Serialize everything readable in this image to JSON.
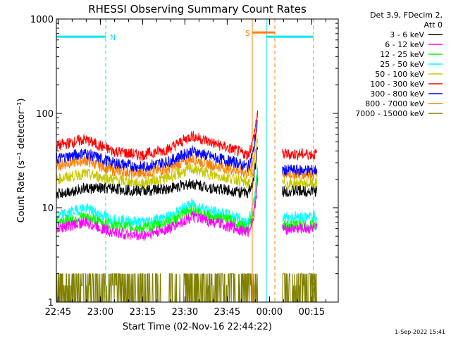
{
  "chart_data": {
    "type": "line",
    "title": "RHESSI Observing Summary Count Rates",
    "ylabel": "Count Rate (s⁻¹ detector⁻¹)",
    "xlabel": "Start Time (02-Nov-16 22:44:22)",
    "yscale": "log",
    "ylim": [
      1,
      1000
    ],
    "x_range_minutes_from_start": [
      0,
      100
    ],
    "x_ticks": [
      {
        "label": "22:45",
        "t": 0.6
      },
      {
        "label": "23:00",
        "t": 15.6
      },
      {
        "label": "23:15",
        "t": 30.6
      },
      {
        "label": "23:30",
        "t": 45.6
      },
      {
        "label": "23:45",
        "t": 60.6
      },
      {
        "label": "00:00",
        "t": 75.6
      },
      {
        "label": "00:15",
        "t": 90.6
      }
    ],
    "y_ticks": [
      {
        "label": "1",
        "v": 1
      },
      {
        "label": "10",
        "v": 10
      },
      {
        "label": "100",
        "v": 100
      },
      {
        "label": "1000",
        "v": 1000
      }
    ],
    "legend_header": [
      "Det 3,9, FDecim 2,",
      "Att 0"
    ],
    "legend_placement": "right",
    "footer_date": "1-Sep-2022 15:41",
    "flags": [
      {
        "label": "N",
        "color": "#00e5ee",
        "t_start": 0,
        "t_end": 17.5,
        "level": 650
      },
      {
        "label": "",
        "color": "#00e5ee",
        "t_start": 74.5,
        "t_end": 91.2,
        "level": 650
      },
      {
        "label": "S",
        "color": "#ff7f00",
        "t_start": 69.5,
        "t_end": 77.5,
        "level": 720
      }
    ],
    "markers": [
      {
        "kind": "solid",
        "color": "#00e5ee",
        "t": 0
      },
      {
        "kind": "dashed",
        "color": "#00e5ee",
        "t": 17.5
      },
      {
        "kind": "solid",
        "color": "#00e5ee",
        "t": 74.5
      },
      {
        "kind": "dashed",
        "color": "#00e5ee",
        "t": 91.2
      },
      {
        "kind": "solid",
        "color": "#ff7f00",
        "t": 69.5
      },
      {
        "kind": "dashed",
        "color": "#ff7f00",
        "t": 77.5
      }
    ],
    "data_gap_minutes": [
      71.5,
      80.2
    ],
    "series": [
      {
        "name": "3 - 6 keV",
        "color": "#000000",
        "t": [
          0,
          10,
          20,
          30,
          40,
          48,
          56,
          64,
          68,
          70,
          71.5,
          80.2,
          90,
          92.5
        ],
        "values": [
          14,
          16,
          16,
          15,
          16,
          18,
          16,
          15,
          14,
          20,
          45,
          15,
          15,
          15
        ]
      },
      {
        "name": "6 - 12 keV",
        "color": "#ff00ff",
        "t": [
          0,
          10,
          20,
          30,
          40,
          48,
          56,
          64,
          68,
          70,
          71.5,
          80.2,
          90,
          92.5
        ],
        "values": [
          6,
          7,
          5.5,
          5,
          6,
          8,
          7,
          6,
          5.5,
          8,
          20,
          6,
          6,
          6
        ]
      },
      {
        "name": "12 - 25 keV",
        "color": "#00ff00",
        "t": [
          0,
          10,
          20,
          30,
          40,
          48,
          56,
          64,
          68,
          70,
          71.5,
          80.2,
          90,
          92.5
        ],
        "values": [
          7,
          8,
          6.5,
          6,
          7,
          9.5,
          8,
          7,
          6,
          9,
          25,
          6.5,
          6.5,
          6.5
        ]
      },
      {
        "name": "25 - 50 keV",
        "color": "#00ffff",
        "t": [
          0,
          10,
          20,
          30,
          40,
          48,
          56,
          64,
          68,
          70,
          71.5,
          80.2,
          90,
          92.5
        ],
        "values": [
          8,
          10,
          7.5,
          7,
          8,
          11,
          9,
          8,
          7,
          11,
          30,
          8,
          8,
          8
        ]
      },
      {
        "name": "50 - 100 keV",
        "color": "#c8c800",
        "t": [
          0,
          10,
          20,
          30,
          40,
          48,
          56,
          64,
          68,
          70,
          71.5,
          80.2,
          90,
          92.5
        ],
        "values": [
          20,
          23,
          20,
          18,
          21,
          26,
          22,
          20,
          18,
          25,
          60,
          18,
          18,
          18
        ]
      },
      {
        "name": "100 - 300 keV",
        "color": "#ff0000",
        "t": [
          0,
          10,
          20,
          30,
          40,
          48,
          56,
          64,
          68,
          70,
          71.5,
          80.2,
          90,
          92.5
        ],
        "values": [
          45,
          53,
          40,
          36,
          42,
          58,
          48,
          40,
          36,
          55,
          110,
          37,
          37,
          37
        ]
      },
      {
        "name": "300 - 800 keV",
        "color": "#0000ff",
        "t": [
          0,
          10,
          20,
          30,
          40,
          48,
          56,
          64,
          68,
          70,
          71.5,
          80.2,
          90,
          92.5
        ],
        "values": [
          33,
          38,
          30,
          27,
          31,
          40,
          34,
          30,
          27,
          40,
          100,
          25,
          25,
          25
        ]
      },
      {
        "name": "800 - 7000 keV",
        "color": "#ff7f00",
        "t": [
          0,
          10,
          20,
          30,
          40,
          48,
          56,
          64,
          68,
          70,
          71.5,
          80.2,
          90,
          92.5
        ],
        "values": [
          28,
          32,
          25,
          23,
          26,
          33,
          28,
          25,
          23,
          33,
          90,
          23,
          23,
          23
        ]
      },
      {
        "name": "7000 - 15000 keV",
        "color": "#808000",
        "t": [
          0,
          10,
          20,
          30,
          40,
          48,
          56,
          64,
          68,
          70,
          71.5,
          80.2,
          90,
          92.5
        ],
        "values": [
          1.5,
          2,
          1.3,
          1.2,
          1.3,
          2.2,
          1.6,
          1.2,
          1.1,
          1.2,
          3,
          1,
          1,
          1
        ]
      }
    ]
  }
}
